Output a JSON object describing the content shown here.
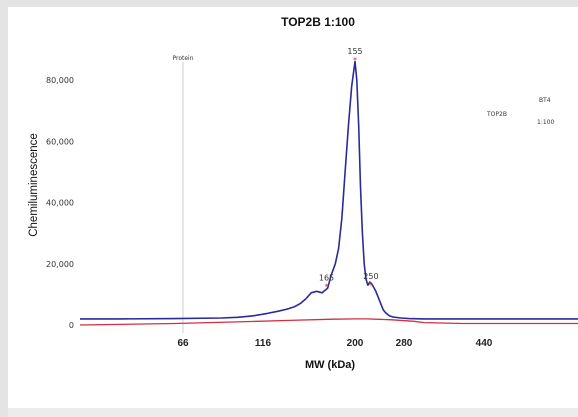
{
  "chart_data": {
    "type": "line",
    "title": "TOP2B 1:100",
    "xlabel": "MW (kDa)",
    "ylabel": "Chemiluminescence",
    "ylim": [
      -3000,
      95000
    ],
    "y_ticks": [
      0,
      20000,
      40000,
      60000,
      80000
    ],
    "y_tick_labels": [
      "0",
      "20,000",
      "40,000",
      "60,000",
      "80,000"
    ],
    "x_ticks": [
      66,
      116,
      200,
      280,
      440
    ],
    "x_tick_labels": [
      "66",
      "116",
      "200",
      "280",
      "440"
    ],
    "marker": {
      "label": "Protein",
      "x": 66
    },
    "legend": {
      "line1": "BT4",
      "line2": "TOP2B",
      "line3": "1:100",
      "placement": "top-right"
    },
    "peaks": [
      {
        "label": "155",
        "x": 200,
        "y": 86500
      },
      {
        "label": "165",
        "x": 174,
        "y": 12500
      },
      {
        "label": "250",
        "x": 226,
        "y": 13000
      }
    ],
    "series": [
      {
        "color": "#2a2a9a",
        "x": [
          -10,
          20,
          60,
          90,
          100,
          110,
          120,
          130,
          138,
          145,
          150,
          155,
          160,
          165,
          170,
          175,
          178,
          182,
          185,
          188,
          191,
          194,
          197,
          200,
          203,
          206,
          209,
          212,
          215,
          218,
          221,
          224,
          227,
          230,
          234,
          238,
          242,
          246,
          250,
          256,
          262,
          275,
          290,
          320,
          400,
          500
        ],
        "y": [
          2000,
          2000,
          2100,
          2300,
          2500,
          3000,
          3800,
          4500,
          5200,
          6000,
          7000,
          8500,
          10500,
          11000,
          10500,
          12000,
          16000,
          20000,
          25000,
          35000,
          50000,
          65000,
          78000,
          86000,
          80000,
          65000,
          45000,
          30000,
          20000,
          15000,
          13000,
          14000,
          13500,
          12500,
          11000,
          9000,
          7000,
          5000,
          4000,
          3000,
          2600,
          2300,
          2100,
          2000,
          2000,
          2000
        ]
      },
      {
        "color": "#d03040",
        "x": [
          -10,
          60,
          100,
          140,
          180,
          200,
          220,
          260,
          300,
          320,
          400,
          500
        ],
        "y": [
          0,
          500,
          1000,
          1500,
          1900,
          2000,
          2000,
          1700,
          1200,
          800,
          500,
          500
        ]
      }
    ]
  }
}
